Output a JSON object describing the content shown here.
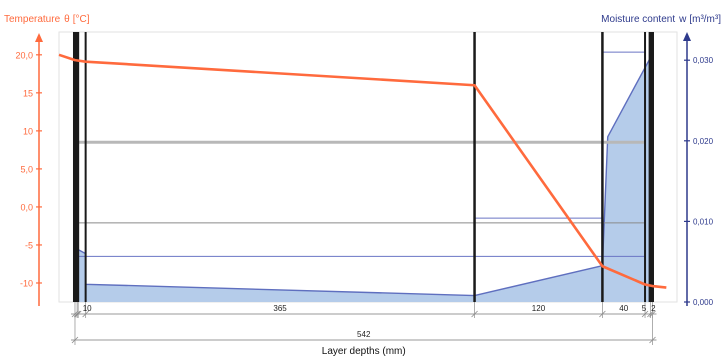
{
  "chart_data": {
    "type": "line",
    "left_axis": {
      "label": "Temperature",
      "symbol": "θ",
      "unit": "[°C]",
      "color": "#ff6a3d",
      "ylim": [
        -12.5,
        23
      ],
      "ticks": [
        {
          "value": 20,
          "label": "20,0"
        },
        {
          "value": 15,
          "label": "15"
        },
        {
          "value": 10,
          "label": "10"
        },
        {
          "value": 5,
          "label": "5,0"
        },
        {
          "value": 0,
          "label": "0,0"
        },
        {
          "value": -5,
          "label": "-5"
        },
        {
          "value": -10,
          "label": "-10"
        }
      ]
    },
    "right_axis": {
      "label": "Moisture content",
      "symbol": "w",
      "unit": "[m³/m³]",
      "color": "#2e3a8c",
      "ylim": [
        0,
        0.0335
      ],
      "ticks": [
        {
          "value": 0.0,
          "label": "0,000"
        },
        {
          "value": 0.01,
          "label": "0,010"
        },
        {
          "value": 0.02,
          "label": "0,020"
        },
        {
          "value": 0.03,
          "label": "0,030"
        }
      ]
    },
    "layers": {
      "boundaries_mm": [
        0,
        2,
        3,
        10,
        375,
        495,
        535,
        540,
        542
      ],
      "widths": [
        {
          "start": 3,
          "end": 10,
          "label": "10"
        },
        {
          "start": 10,
          "end": 375,
          "label": "365"
        },
        {
          "start": 375,
          "end": 495,
          "label": "120"
        },
        {
          "start": 495,
          "end": 535,
          "label": "40"
        },
        {
          "start": 535,
          "end": 540,
          "label": "5"
        },
        {
          "start": 540,
          "end": 542,
          "label": "2"
        }
      ],
      "total_label": "542",
      "xlabel": "Layer depths (mm)"
    },
    "x_range_mm": [
      -15,
      565
    ],
    "temperature": {
      "x_mm": [
        -15,
        0,
        10,
        375,
        495,
        535,
        542,
        555
      ],
      "y_c": [
        20.0,
        19.3,
        19.1,
        16.0,
        -7.8,
        -10.2,
        -10.4,
        -10.6
      ],
      "color": "#ff6a3d"
    },
    "moisture": {
      "x_mm": [
        3,
        3,
        10,
        10,
        375,
        495,
        495,
        500,
        500,
        540,
        540
      ],
      "w": [
        0.0065,
        0.0065,
        0.006,
        0.0022,
        0.0008,
        0.0045,
        0.0045,
        0.0205,
        0.0205,
        0.0303,
        0.0303
      ],
      "color": "#5f6fbf",
      "fill": "#b5ccea"
    },
    "horizontal_lines": [
      {
        "axis": "left",
        "value": 8.5,
        "color": "#b8b8b8",
        "width": 3
      },
      {
        "axis": "left",
        "value": -2.1,
        "color": "#8a8a8a",
        "width": 1
      },
      {
        "axis": "left",
        "value": -6.5,
        "color": "#6a74c4",
        "width": 1
      },
      {
        "axis": "right",
        "segments": [
          [
            375,
            495,
            0.0104
          ],
          [
            495,
            535,
            0.031
          ]
        ],
        "color": "#6a74c4",
        "width": 1
      }
    ]
  }
}
